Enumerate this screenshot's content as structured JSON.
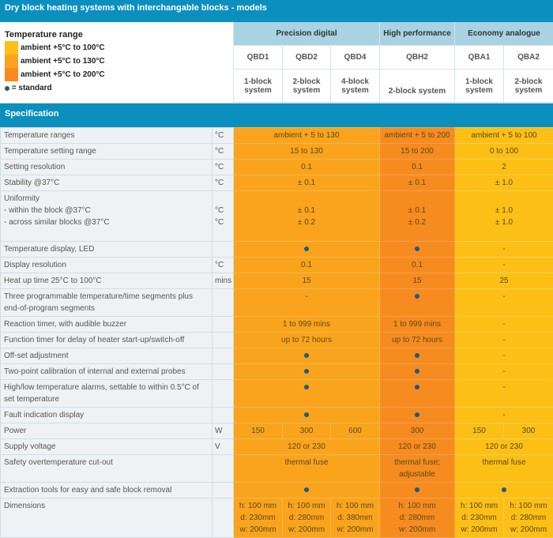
{
  "title": "Dry block heating systems with interchangable blocks - models",
  "legend": {
    "heading": "Temperature range",
    "items": [
      {
        "label": "ambient +5°C to 100°C",
        "color": "#fcbf16"
      },
      {
        "label": "ambient +5°C to 130°C",
        "color": "#f9a41c"
      },
      {
        "label": "ambient +5°C to 200°C",
        "color": "#f68b1f"
      }
    ],
    "standard": "= standard"
  },
  "families": [
    "Precision digital",
    "High performance",
    "Economy analogue"
  ],
  "models": [
    "QBD1",
    "QBD2",
    "QBD4",
    "QBH2",
    "QBA1",
    "QBA2"
  ],
  "systems": [
    "1-block system",
    "2-block system",
    "4-block system",
    "2-block system",
    "1-block system",
    "2-block system"
  ],
  "spec_heading": "Specification",
  "colors": {
    "p": "#f9a41c",
    "h": "#f68b1f",
    "e": "#fcbf16",
    "header": "#0a8fbf"
  },
  "rows": [
    {
      "label": "Temperature ranges",
      "unit": "°C",
      "cells": [
        [
          "ambient + 5 to 130",
          3,
          "p"
        ],
        [
          "ambient + 5 to 200",
          1,
          "h"
        ],
        [
          "ambient + 5 to 100",
          2,
          "e"
        ]
      ]
    },
    {
      "label": "Temperature setting range",
      "unit": "°C",
      "cells": [
        [
          "15 to 130",
          3,
          "p"
        ],
        [
          "15 to 200",
          1,
          "h"
        ],
        [
          "0 to 100",
          2,
          "e"
        ]
      ]
    },
    {
      "label": "Setting resolution",
      "unit": "°C",
      "cells": [
        [
          "0.1",
          3,
          "p"
        ],
        [
          "0.1",
          1,
          "h"
        ],
        [
          "2",
          2,
          "e"
        ]
      ]
    },
    {
      "label": "Stability @37°C",
      "unit": "°C",
      "cells": [
        [
          "± 0.1",
          3,
          "p"
        ],
        [
          "± 0.1",
          1,
          "h"
        ],
        [
          "± 1.0",
          2,
          "e"
        ]
      ]
    },
    {
      "label": "Uniformity\n- within the block @37°C\n- across similar blocks @37°C",
      "unit": "\n°C\n°C",
      "h": 64,
      "cells": [
        [
          "\n± 0.1\n± 0.2",
          3,
          "p"
        ],
        [
          "\n± 0.1\n± 0.2",
          1,
          "h"
        ],
        [
          "\n± 1.0\n± 1.0",
          2,
          "e"
        ]
      ]
    },
    {
      "label": "Temperature display, LED",
      "unit": "",
      "cells": [
        [
          "●",
          3,
          "p"
        ],
        [
          "●",
          1,
          "h"
        ],
        [
          "-",
          2,
          "e"
        ]
      ]
    },
    {
      "label": "Display resolution",
      "unit": "°C",
      "cells": [
        [
          "0.1",
          3,
          "p"
        ],
        [
          "0.1",
          1,
          "h"
        ],
        [
          "-",
          2,
          "e"
        ]
      ]
    },
    {
      "label": "Heat up time 25°C to 100°C",
      "unit": "mins",
      "cells": [
        [
          "15",
          3,
          "p"
        ],
        [
          "15",
          1,
          "h"
        ],
        [
          "25",
          2,
          "e"
        ]
      ]
    },
    {
      "label": "Three programmable temperature/time segments plus end-of-program segments",
      "unit": "",
      "h": 35,
      "cells": [
        [
          "-",
          3,
          "p"
        ],
        [
          "●",
          1,
          "h"
        ],
        [
          "-",
          2,
          "e"
        ]
      ]
    },
    {
      "label": "Reaction timer, with audible buzzer",
      "unit": "",
      "cells": [
        [
          "1 to 999 mins",
          3,
          "p"
        ],
        [
          "1 to 999 mins",
          1,
          "h"
        ],
        [
          "-",
          2,
          "e"
        ]
      ]
    },
    {
      "label": "Function timer for delay of heater start-up/switch-off",
      "unit": "",
      "cells": [
        [
          "up to 72 hours",
          3,
          "p"
        ],
        [
          "up to 72 hours",
          1,
          "h"
        ],
        [
          "-",
          2,
          "e"
        ]
      ]
    },
    {
      "label": "Off-set adjustment",
      "unit": "",
      "cells": [
        [
          "●",
          3,
          "p"
        ],
        [
          "●",
          1,
          "h"
        ],
        [
          "-",
          2,
          "e"
        ]
      ]
    },
    {
      "label": "Two-point calibration of internal and external probes",
      "unit": "",
      "cells": [
        [
          "●",
          3,
          "p"
        ],
        [
          "●",
          1,
          "h"
        ],
        [
          "-",
          2,
          "e"
        ]
      ]
    },
    {
      "label": "High/low temperature alarms, settable to within 0.5°C of set temperature",
      "unit": "",
      "h": 35,
      "cells": [
        [
          "●",
          3,
          "p"
        ],
        [
          "●",
          1,
          "h"
        ],
        [
          "-",
          2,
          "e"
        ]
      ]
    },
    {
      "label": "Fault indication display",
      "unit": "",
      "cells": [
        [
          "●",
          3,
          "p"
        ],
        [
          "●",
          1,
          "h"
        ],
        [
          "-",
          2,
          "e"
        ]
      ]
    },
    {
      "label": "Power",
      "unit": "W",
      "cells": [
        [
          "150",
          1,
          "p"
        ],
        [
          "300",
          1,
          "p"
        ],
        [
          "600",
          1,
          "p"
        ],
        [
          "300",
          1,
          "h"
        ],
        [
          "150",
          1,
          "e"
        ],
        [
          "300",
          1,
          "e"
        ]
      ]
    },
    {
      "label": "Supply voltage",
      "unit": "V",
      "cells": [
        [
          "120 or 230",
          3,
          "p"
        ],
        [
          "120 or 230",
          1,
          "h"
        ],
        [
          "120 or 230",
          2,
          "e"
        ]
      ]
    },
    {
      "label": "Safety overtemperature cut-out",
      "unit": "",
      "h": 35,
      "cells": [
        [
          "thermal fuse",
          3,
          "p"
        ],
        [
          "thermal fuse;\nadjustable",
          1,
          "h"
        ],
        [
          "thermal fuse",
          2,
          "e"
        ]
      ]
    },
    {
      "label": "Extraction tools for easy and safe block removal",
      "unit": "",
      "cells": [
        [
          "●",
          3,
          "p"
        ],
        [
          "●",
          1,
          "h"
        ],
        [
          "●",
          2,
          "e"
        ]
      ]
    },
    {
      "label": "Dimensions",
      "unit": "",
      "h": 50,
      "cells": [
        [
          "h: 100 mm\nd: 230mm\nw: 200mm",
          1,
          "p"
        ],
        [
          "h: 100 mm\nd: 280mm\nw: 200mm",
          1,
          "p"
        ],
        [
          "h: 100 mm\nd: 380mm\nw: 200mm",
          1,
          "p"
        ],
        [
          "h: 100 mm\nd: 280mm\nw: 200mm",
          1,
          "h"
        ],
        [
          "h: 100 mm\nd: 230mm\nw: 200mm",
          1,
          "e"
        ],
        [
          "h: 100 mm\nd: 280mm\nw: 200mm",
          1,
          "e"
        ]
      ]
    }
  ]
}
